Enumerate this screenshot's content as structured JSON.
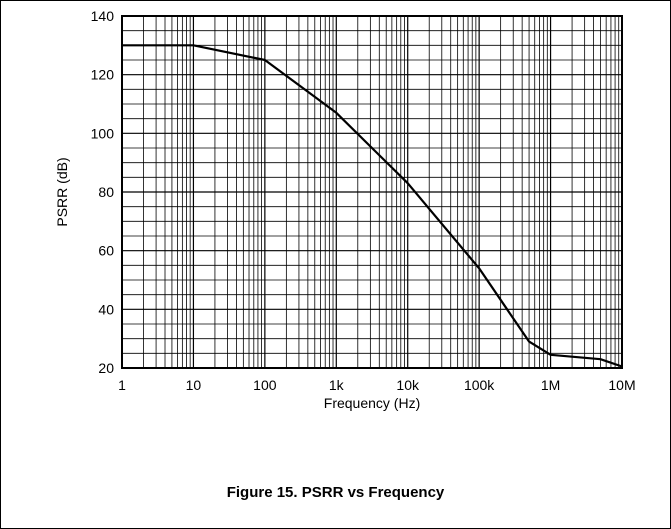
{
  "caption": "Figure 15. PSRR vs Frequency",
  "chart_data": {
    "type": "line",
    "title": "",
    "xlabel": "Frequency (Hz)",
    "ylabel": "PSRR (dB)",
    "x_scale": "log",
    "xlim": [
      1,
      10000000
    ],
    "ylim": [
      20,
      140
    ],
    "grid": true,
    "x_tick_labels": [
      "1",
      "10",
      "100",
      "1k",
      "10k",
      "100k",
      "1M",
      "10M"
    ],
    "x_tick_values": [
      1,
      10,
      100,
      1000,
      10000,
      100000,
      1000000,
      10000000
    ],
    "y_tick_labels": [
      "20",
      "40",
      "60",
      "80",
      "100",
      "120",
      "140"
    ],
    "y_tick_values": [
      20,
      40,
      60,
      80,
      100,
      120,
      140
    ],
    "series": [
      {
        "x": [
          1,
          10,
          100,
          1000,
          10000,
          100000,
          500000,
          1000000,
          5000000,
          10000000
        ],
        "y": [
          130,
          130,
          125,
          107,
          83,
          54,
          29,
          24.5,
          23,
          20.5
        ]
      }
    ]
  }
}
